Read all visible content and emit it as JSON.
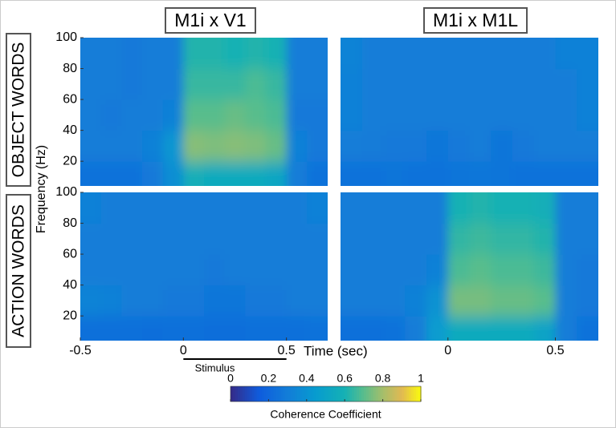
{
  "column_titles": [
    "M1i x V1",
    "M1i x M1L"
  ],
  "row_labels": [
    "OBJECT WORDS",
    "ACTION WORDS"
  ],
  "xlabel": "Time (sec)",
  "ylabel": "Frequency (Hz)",
  "stimulus": {
    "label": "Stimulus",
    "x": [
      0,
      0.5
    ]
  },
  "colorbar": {
    "label": "Coherence Coefficient",
    "colormap": "parula",
    "lim": [
      0,
      1
    ],
    "ticks": [
      0,
      0.2,
      0.4,
      0.6,
      0.8,
      1
    ]
  },
  "chart_data": [
    {
      "type": "heatmap",
      "colormap": "parula",
      "xlim": [
        -0.5,
        0.7
      ],
      "ylim": [
        4,
        100
      ],
      "yticks": [
        20,
        40,
        60,
        80,
        100
      ],
      "x": [
        -0.45,
        -0.35,
        -0.25,
        -0.15,
        -0.05,
        0.05,
        0.15,
        0.25,
        0.35,
        0.45,
        0.55,
        0.65
      ],
      "y": [
        10,
        30,
        50,
        70,
        90
      ],
      "values": [
        [
          0.25,
          0.25,
          0.25,
          0.28,
          0.38,
          0.58,
          0.55,
          0.55,
          0.55,
          0.52,
          0.3,
          0.25
        ],
        [
          0.3,
          0.3,
          0.3,
          0.32,
          0.42,
          0.76,
          0.75,
          0.76,
          0.75,
          0.72,
          0.32,
          0.28
        ],
        [
          0.3,
          0.28,
          0.3,
          0.3,
          0.32,
          0.7,
          0.7,
          0.72,
          0.7,
          0.68,
          0.28,
          0.28
        ],
        [
          0.3,
          0.3,
          0.28,
          0.3,
          0.3,
          0.65,
          0.65,
          0.65,
          0.68,
          0.65,
          0.3,
          0.3
        ],
        [
          0.3,
          0.3,
          0.28,
          0.3,
          0.3,
          0.62,
          0.62,
          0.6,
          0.62,
          0.6,
          0.3,
          0.3
        ]
      ]
    },
    {
      "type": "heatmap",
      "colormap": "parula",
      "xlim": [
        -0.5,
        0.7
      ],
      "ylim": [
        4,
        100
      ],
      "x": [
        -0.45,
        -0.35,
        -0.25,
        -0.15,
        -0.05,
        0.05,
        0.15,
        0.25,
        0.35,
        0.45,
        0.55,
        0.65
      ],
      "y": [
        10,
        30,
        50,
        70,
        90
      ],
      "values": [
        [
          0.25,
          0.25,
          0.26,
          0.25,
          0.25,
          0.26,
          0.27,
          0.26,
          0.25,
          0.25,
          0.25,
          0.25
        ],
        [
          0.3,
          0.29,
          0.28,
          0.28,
          0.27,
          0.28,
          0.3,
          0.26,
          0.28,
          0.3,
          0.3,
          0.3
        ],
        [
          0.32,
          0.3,
          0.3,
          0.3,
          0.3,
          0.3,
          0.3,
          0.3,
          0.3,
          0.3,
          0.3,
          0.32
        ],
        [
          0.32,
          0.3,
          0.3,
          0.3,
          0.3,
          0.3,
          0.3,
          0.3,
          0.3,
          0.3,
          0.3,
          0.32
        ],
        [
          0.33,
          0.3,
          0.3,
          0.3,
          0.3,
          0.3,
          0.3,
          0.3,
          0.3,
          0.3,
          0.32,
          0.32
        ]
      ]
    },
    {
      "type": "heatmap",
      "colormap": "parula",
      "xlim": [
        -0.5,
        0.7
      ],
      "ylim": [
        4,
        100
      ],
      "xticks": [
        -0.5,
        0,
        0.5
      ],
      "yticks": [
        20,
        40,
        60,
        80,
        100
      ],
      "x": [
        -0.45,
        -0.35,
        -0.25,
        -0.15,
        -0.05,
        0.05,
        0.15,
        0.25,
        0.35,
        0.45,
        0.55,
        0.65
      ],
      "y": [
        10,
        30,
        50,
        70,
        90
      ],
      "values": [
        [
          0.24,
          0.24,
          0.24,
          0.23,
          0.24,
          0.24,
          0.23,
          0.23,
          0.24,
          0.24,
          0.24,
          0.25
        ],
        [
          0.33,
          0.32,
          0.3,
          0.3,
          0.28,
          0.28,
          0.27,
          0.27,
          0.28,
          0.28,
          0.3,
          0.3
        ],
        [
          0.3,
          0.3,
          0.3,
          0.3,
          0.3,
          0.3,
          0.28,
          0.3,
          0.3,
          0.3,
          0.3,
          0.3
        ],
        [
          0.3,
          0.3,
          0.3,
          0.3,
          0.3,
          0.3,
          0.3,
          0.3,
          0.3,
          0.3,
          0.3,
          0.3
        ],
        [
          0.32,
          0.3,
          0.3,
          0.3,
          0.3,
          0.3,
          0.3,
          0.3,
          0.3,
          0.3,
          0.3,
          0.32
        ]
      ]
    },
    {
      "type": "heatmap",
      "colormap": "parula",
      "xlim": [
        -0.5,
        0.7
      ],
      "ylim": [
        4,
        100
      ],
      "xticks": [
        0,
        0.5
      ],
      "x": [
        -0.45,
        -0.35,
        -0.25,
        -0.15,
        -0.05,
        0.05,
        0.15,
        0.25,
        0.35,
        0.45,
        0.55,
        0.65
      ],
      "y": [
        10,
        30,
        50,
        70,
        90
      ],
      "values": [
        [
          0.24,
          0.24,
          0.25,
          0.3,
          0.45,
          0.55,
          0.55,
          0.55,
          0.55,
          0.5,
          0.3,
          0.25
        ],
        [
          0.3,
          0.3,
          0.3,
          0.32,
          0.4,
          0.74,
          0.74,
          0.72,
          0.72,
          0.7,
          0.3,
          0.28
        ],
        [
          0.3,
          0.3,
          0.3,
          0.3,
          0.32,
          0.68,
          0.7,
          0.68,
          0.68,
          0.66,
          0.3,
          0.28
        ],
        [
          0.3,
          0.3,
          0.3,
          0.3,
          0.3,
          0.64,
          0.66,
          0.64,
          0.64,
          0.62,
          0.3,
          0.3
        ],
        [
          0.3,
          0.3,
          0.3,
          0.3,
          0.3,
          0.6,
          0.62,
          0.6,
          0.6,
          0.58,
          0.3,
          0.3
        ]
      ]
    }
  ]
}
